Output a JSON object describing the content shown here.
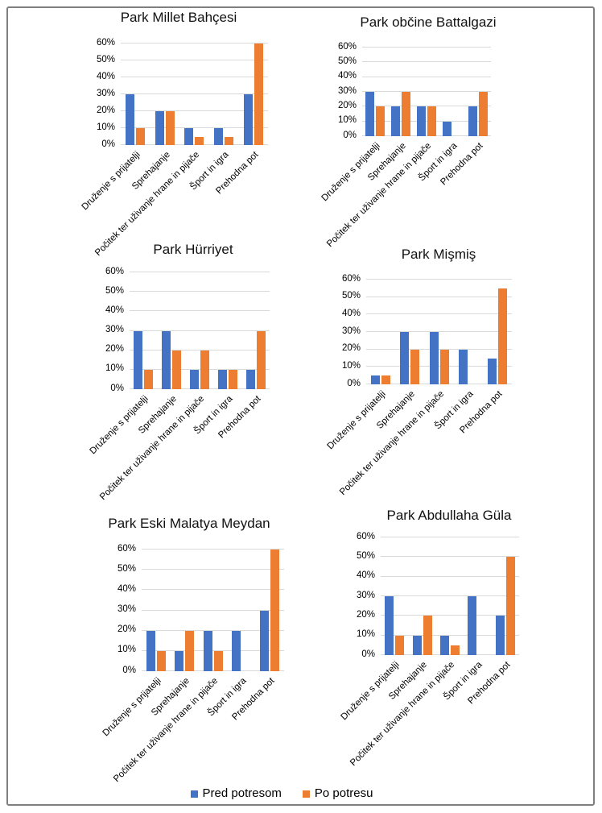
{
  "figure": {
    "background": "#ffffff",
    "border_color": "#7f7f7f"
  },
  "legend": {
    "items": [
      {
        "label": "Pred potresom",
        "color": "#4472C4"
      },
      {
        "label": "Po potresu",
        "color": "#ED7D31"
      }
    ]
  },
  "chart_data": [
    {
      "type": "bar",
      "title": "Park Millet Bahçesi",
      "categories": [
        "Druženje s prijatelji",
        "Sprehajanje",
        "Počitek ter uživanje hrane in pijače",
        "Šport in igra",
        "Prehodna pot"
      ],
      "series": [
        {
          "name": "Pred potresom",
          "color": "#4472C4",
          "values": [
            30,
            20,
            10,
            10,
            30
          ]
        },
        {
          "name": "Po potresu",
          "color": "#ED7D31",
          "values": [
            10,
            20,
            5,
            5,
            60
          ]
        }
      ],
      "ylim": [
        0,
        60
      ],
      "yticks": [
        "0%",
        "10%",
        "20%",
        "30%",
        "40%",
        "50%",
        "60%"
      ],
      "grid": true,
      "legend_position": "shared-bottom"
    },
    {
      "type": "bar",
      "title": "Park občine Battalgazi",
      "categories": [
        "Druženje s prijatelji",
        "Sprehajanje",
        "Počitek ter uživanje hrane in pijače",
        "Šport in igra",
        "Prehodna pot"
      ],
      "series": [
        {
          "name": "Pred potresom",
          "color": "#4472C4",
          "values": [
            30,
            20,
            20,
            10,
            20
          ]
        },
        {
          "name": "Po potresu",
          "color": "#ED7D31",
          "values": [
            20,
            30,
            20,
            0,
            30
          ]
        }
      ],
      "ylim": [
        0,
        60
      ],
      "yticks": [
        "0%",
        "10%",
        "20%",
        "30%",
        "40%",
        "50%",
        "60%"
      ],
      "grid": true,
      "legend_position": "shared-bottom"
    },
    {
      "type": "bar",
      "title": "Park Hürriyet",
      "categories": [
        "Druženje s prijatelji",
        "Sprehajanje",
        "Počitek ter uživanje hrane in pijače",
        "Šport in igra",
        "Prehodna pot"
      ],
      "series": [
        {
          "name": "Pred potresom",
          "color": "#4472C4",
          "values": [
            30,
            30,
            10,
            10,
            10
          ]
        },
        {
          "name": "Po potresu",
          "color": "#ED7D31",
          "values": [
            10,
            20,
            20,
            10,
            30
          ]
        }
      ],
      "ylim": [
        0,
        60
      ],
      "yticks": [
        "0%",
        "10%",
        "20%",
        "30%",
        "40%",
        "50%",
        "60%"
      ],
      "grid": true,
      "legend_position": "shared-bottom"
    },
    {
      "type": "bar",
      "title": "Park Mişmiş",
      "categories": [
        "Druženje s prijatelji",
        "Sprehajanje",
        "Počitek ter uživanje hrane in pijače",
        "Šport in igra",
        "Prehodna pot"
      ],
      "series": [
        {
          "name": "Pred potresom",
          "color": "#4472C4",
          "values": [
            5,
            30,
            30,
            20,
            15
          ]
        },
        {
          "name": "Po potresu",
          "color": "#ED7D31",
          "values": [
            5,
            20,
            20,
            0,
            55
          ]
        }
      ],
      "ylim": [
        0,
        60
      ],
      "yticks": [
        "0%",
        "10%",
        "20%",
        "30%",
        "40%",
        "50%",
        "60%"
      ],
      "grid": true,
      "legend_position": "shared-bottom"
    },
    {
      "type": "bar",
      "title": "Park Eski Malatya Meydan",
      "categories": [
        "Druženje s prijatelji",
        "Sprehajanje",
        "Počitek ter uživanje hrane in pijače",
        "Šport in igra",
        "Prehodna pot"
      ],
      "series": [
        {
          "name": "Pred potresom",
          "color": "#4472C4",
          "values": [
            20,
            10,
            20,
            20,
            30
          ]
        },
        {
          "name": "Po potresu",
          "color": "#ED7D31",
          "values": [
            10,
            20,
            10,
            0,
            60
          ]
        }
      ],
      "ylim": [
        0,
        60
      ],
      "yticks": [
        "0%",
        "10%",
        "20%",
        "30%",
        "40%",
        "50%",
        "60%"
      ],
      "grid": true,
      "legend_position": "shared-bottom"
    },
    {
      "type": "bar",
      "title": "Park Abdullaha Güla",
      "categories": [
        "Druženje s prijatelji",
        "Sprehajanje",
        "Počitek ter uživanje hrane in pijače",
        "Šport in igra",
        "Prehodna pot"
      ],
      "series": [
        {
          "name": "Pred potresom",
          "color": "#4472C4",
          "values": [
            30,
            10,
            10,
            30,
            20
          ]
        },
        {
          "name": "Po potresu",
          "color": "#ED7D31",
          "values": [
            10,
            20,
            5,
            0,
            50
          ]
        }
      ],
      "ylim": [
        0,
        60
      ],
      "yticks": [
        "0%",
        "10%",
        "20%",
        "30%",
        "40%",
        "50%",
        "60%"
      ],
      "grid": true,
      "legend_position": "shared-bottom"
    }
  ]
}
